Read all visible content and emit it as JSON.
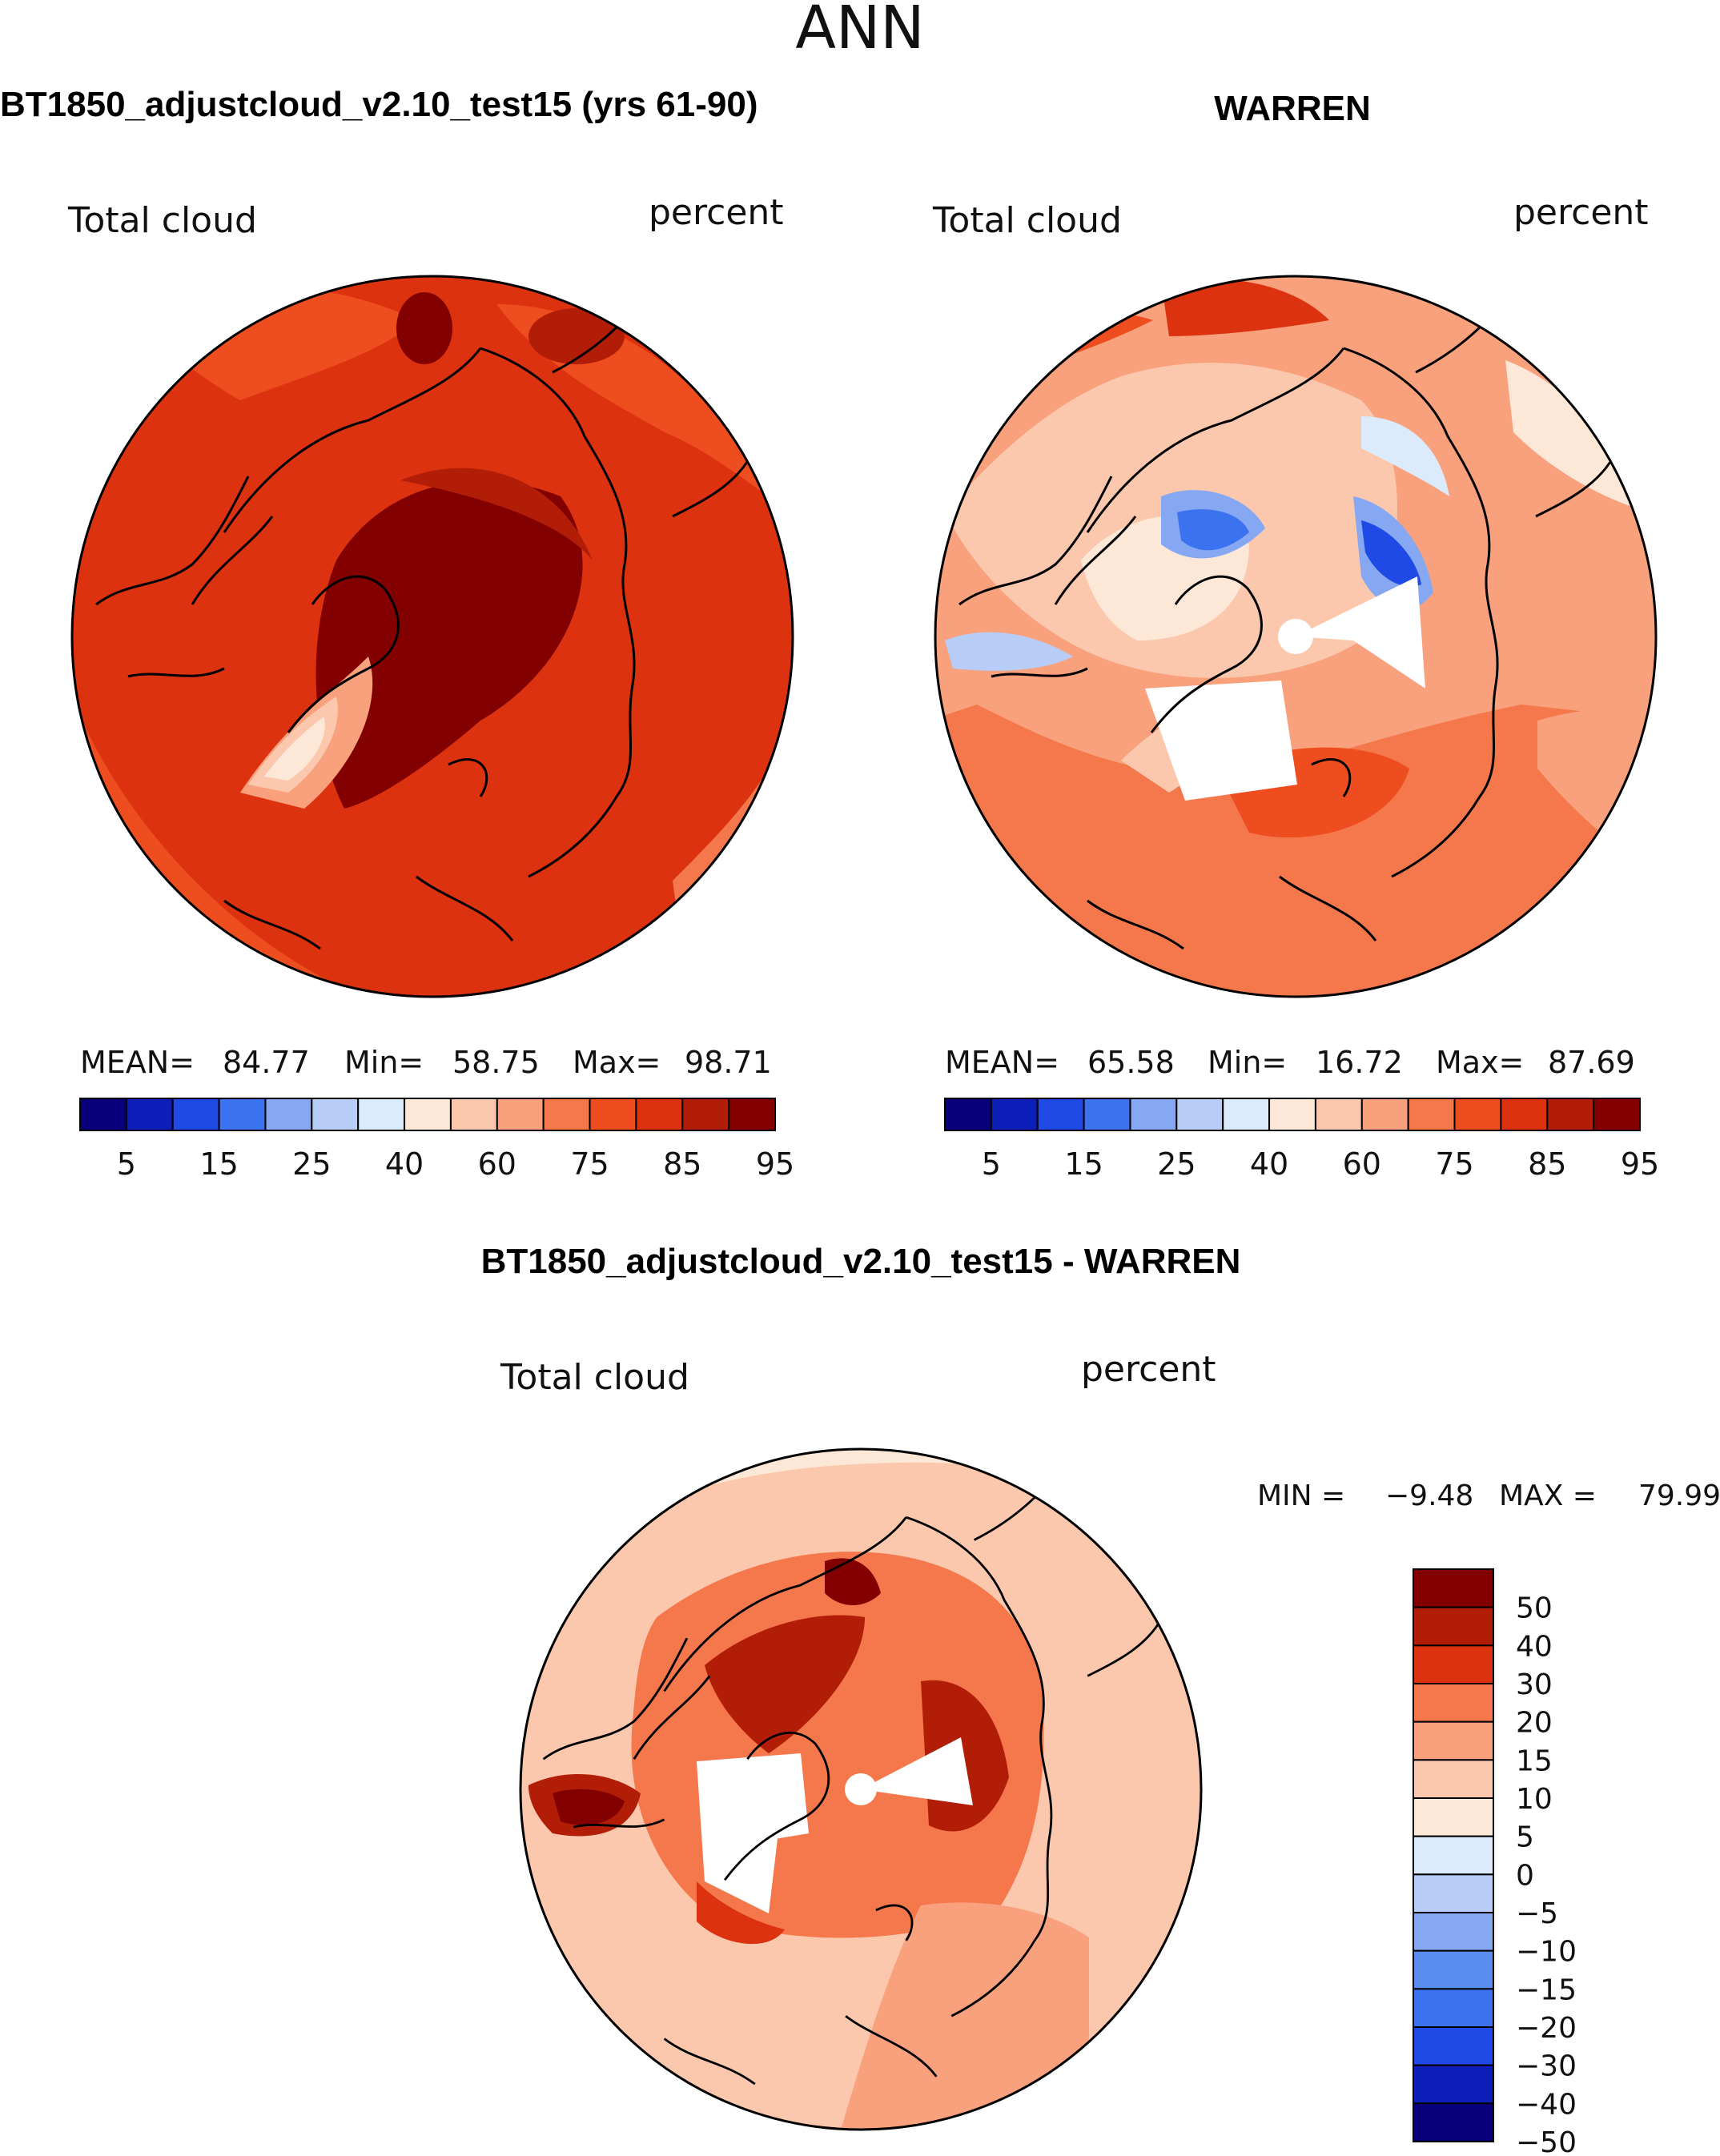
{
  "page_title": "ANN",
  "chart_data": [
    {
      "type": "polar-contour-map",
      "panel": "left",
      "title": "BT1850_adjustcloud_v2.10_test15 (yrs 61-90)",
      "variable": "Total cloud",
      "units": "percent",
      "stats": {
        "mean_label": "MEAN=",
        "mean": "84.77",
        "min_label": "Min=",
        "min": "58.75",
        "max_label": "Max=",
        "max": "98.71"
      },
      "colorbar": {
        "orientation": "horizontal",
        "colors": [
          "#08007a",
          "#0d1fb8",
          "#1f4ae6",
          "#3b72f0",
          "#86a8f2",
          "#b7cdf7",
          "#dcebfb",
          "#fde8d8",
          "#fbc8ae",
          "#f9a07c",
          "#f5784c",
          "#ee4e1f",
          "#dc3210",
          "#b21d08",
          "#820000"
        ],
        "tick_labels": [
          "5",
          "15",
          "25",
          "40",
          "60",
          "75",
          "85",
          "95"
        ]
      }
    },
    {
      "type": "polar-contour-map",
      "panel": "right",
      "title": "WARREN",
      "variable": "Total cloud",
      "units": "percent",
      "stats": {
        "mean_label": "MEAN=",
        "mean": "65.58",
        "min_label": "Min=",
        "min": "16.72",
        "max_label": "Max=",
        "max": "87.69"
      },
      "colorbar": {
        "orientation": "horizontal",
        "colors": [
          "#08007a",
          "#0d1fb8",
          "#1f4ae6",
          "#3b72f0",
          "#86a8f2",
          "#b7cdf7",
          "#dcebfb",
          "#fde8d8",
          "#fbc8ae",
          "#f9a07c",
          "#f5784c",
          "#ee4e1f",
          "#dc3210",
          "#b21d08",
          "#820000"
        ],
        "tick_labels": [
          "5",
          "15",
          "25",
          "40",
          "60",
          "75",
          "85",
          "95"
        ]
      }
    },
    {
      "type": "polar-contour-map",
      "panel": "difference",
      "title": "BT1850_adjustcloud_v2.10_test15 - WARREN",
      "variable": "Total cloud",
      "units": "percent",
      "stats": {
        "min_label": "MIN =",
        "min": "−9.48",
        "max_label": "MAX =",
        "max": "79.99"
      },
      "colorbar": {
        "orientation": "vertical",
        "colors": [
          "#820000",
          "#b21d08",
          "#dc3210",
          "#f5784c",
          "#f9a07c",
          "#fbc8ae",
          "#fde8d8",
          "#dcebfb",
          "#b7cdf7",
          "#86a8f2",
          "#5b8cf0",
          "#3b72f0",
          "#1f4ae6",
          "#0d1fb8",
          "#08007a"
        ],
        "tick_labels": [
          "50",
          "40",
          "30",
          "20",
          "15",
          "10",
          "5",
          "0",
          "−5",
          "−10",
          "−15",
          "−20",
          "−30",
          "−40",
          "−50"
        ]
      }
    }
  ]
}
